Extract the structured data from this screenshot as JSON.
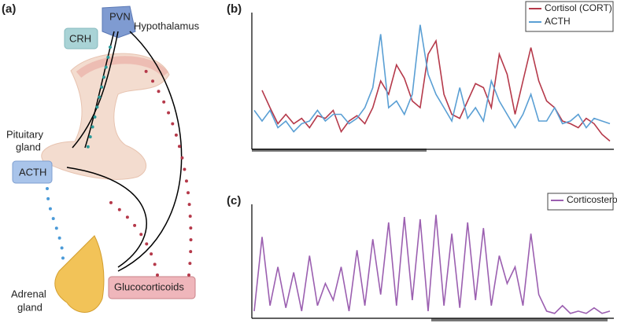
{
  "panels": [
    "(a)",
    "(b)",
    "(c)"
  ],
  "diagram": {
    "pvn": "PVN",
    "hypothalamus": "Hypothalamus",
    "crh": "CRH",
    "pituitary": [
      "Pituitary",
      "gland"
    ],
    "acth": "ACTH",
    "adrenal": [
      "Adrenal",
      "gland"
    ],
    "glucocorticoids": "Glucocorticoids"
  },
  "chart_data": [
    {
      "type": "line",
      "ylim": [
        0,
        100
      ],
      "legend": "upper right",
      "series": [
        {
          "name": "Cortisol (CORT)",
          "color": "#b5394a",
          "values": [
            null,
            43,
            30,
            18,
            25,
            18,
            22,
            15,
            24,
            22,
            28,
            12,
            20,
            24,
            18,
            30,
            50,
            40,
            62,
            52,
            35,
            30,
            70,
            80,
            40,
            25,
            22,
            35,
            48,
            45,
            30,
            70,
            55,
            25,
            50,
            75,
            50,
            35,
            30,
            20,
            18,
            15,
            22,
            18,
            10,
            5
          ]
        },
        {
          "name": "ACTH",
          "color": "#5a9fd4",
          "values": [
            28,
            20,
            28,
            15,
            20,
            12,
            18,
            20,
            28,
            20,
            25,
            25,
            18,
            22,
            30,
            45,
            85,
            30,
            35,
            25,
            40,
            92,
            55,
            40,
            30,
            20,
            45,
            22,
            30,
            20,
            50,
            35,
            25,
            15,
            25,
            40,
            20,
            20,
            30,
            18,
            20,
            25,
            15,
            22,
            20,
            18
          ]
        }
      ]
    },
    {
      "type": "line",
      "ylim": [
        0,
        100
      ],
      "legend": "upper right",
      "series": [
        {
          "name": "Corticosterone",
          "color": "#9b5fb0",
          "values": [
            5,
            72,
            10,
            45,
            8,
            40,
            5,
            55,
            10,
            30,
            15,
            45,
            5,
            60,
            10,
            70,
            20,
            85,
            10,
            90,
            15,
            88,
            5,
            92,
            10,
            75,
            8,
            85,
            15,
            80,
            10,
            55,
            30,
            45,
            10,
            75,
            20,
            5,
            3,
            10,
            3,
            5,
            3,
            8,
            3,
            5
          ]
        }
      ]
    }
  ]
}
